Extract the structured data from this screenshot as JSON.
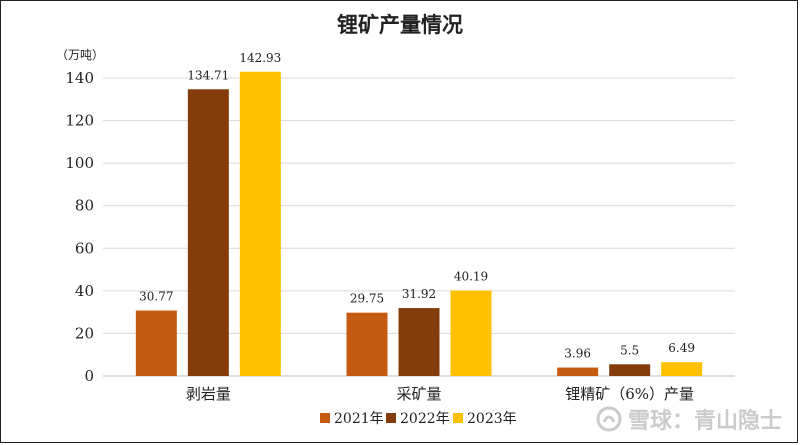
{
  "chart_data": {
    "type": "bar",
    "title": "锂矿产量情况",
    "unit_label": "（万吨）",
    "categories": [
      "剥岩量",
      "采矿量",
      "锂精矿（6%）产量"
    ],
    "series": [
      {
        "name": "2021年",
        "color": "#C55A11",
        "values": [
          30.77,
          29.75,
          3.96
        ],
        "labels": [
          "30.77",
          "29.75",
          "3.96"
        ]
      },
      {
        "name": "2022年",
        "color": "#843C0C",
        "values": [
          134.71,
          31.92,
          5.5
        ],
        "labels": [
          "134.71",
          "31.92",
          "5.5"
        ]
      },
      {
        "name": "2023年",
        "color": "#FFC000",
        "values": [
          142.93,
          40.19,
          6.49
        ],
        "labels": [
          "142.93",
          "40.19",
          "6.49"
        ]
      }
    ],
    "ylim": [
      0,
      140
    ],
    "yticks": [
      0,
      20,
      40,
      60,
      80,
      100,
      120,
      140
    ],
    "grid": true,
    "legend": "bottom"
  },
  "watermark": {
    "text": "雪球：青山隐士",
    "icon": "xueqiu-logo-icon"
  }
}
